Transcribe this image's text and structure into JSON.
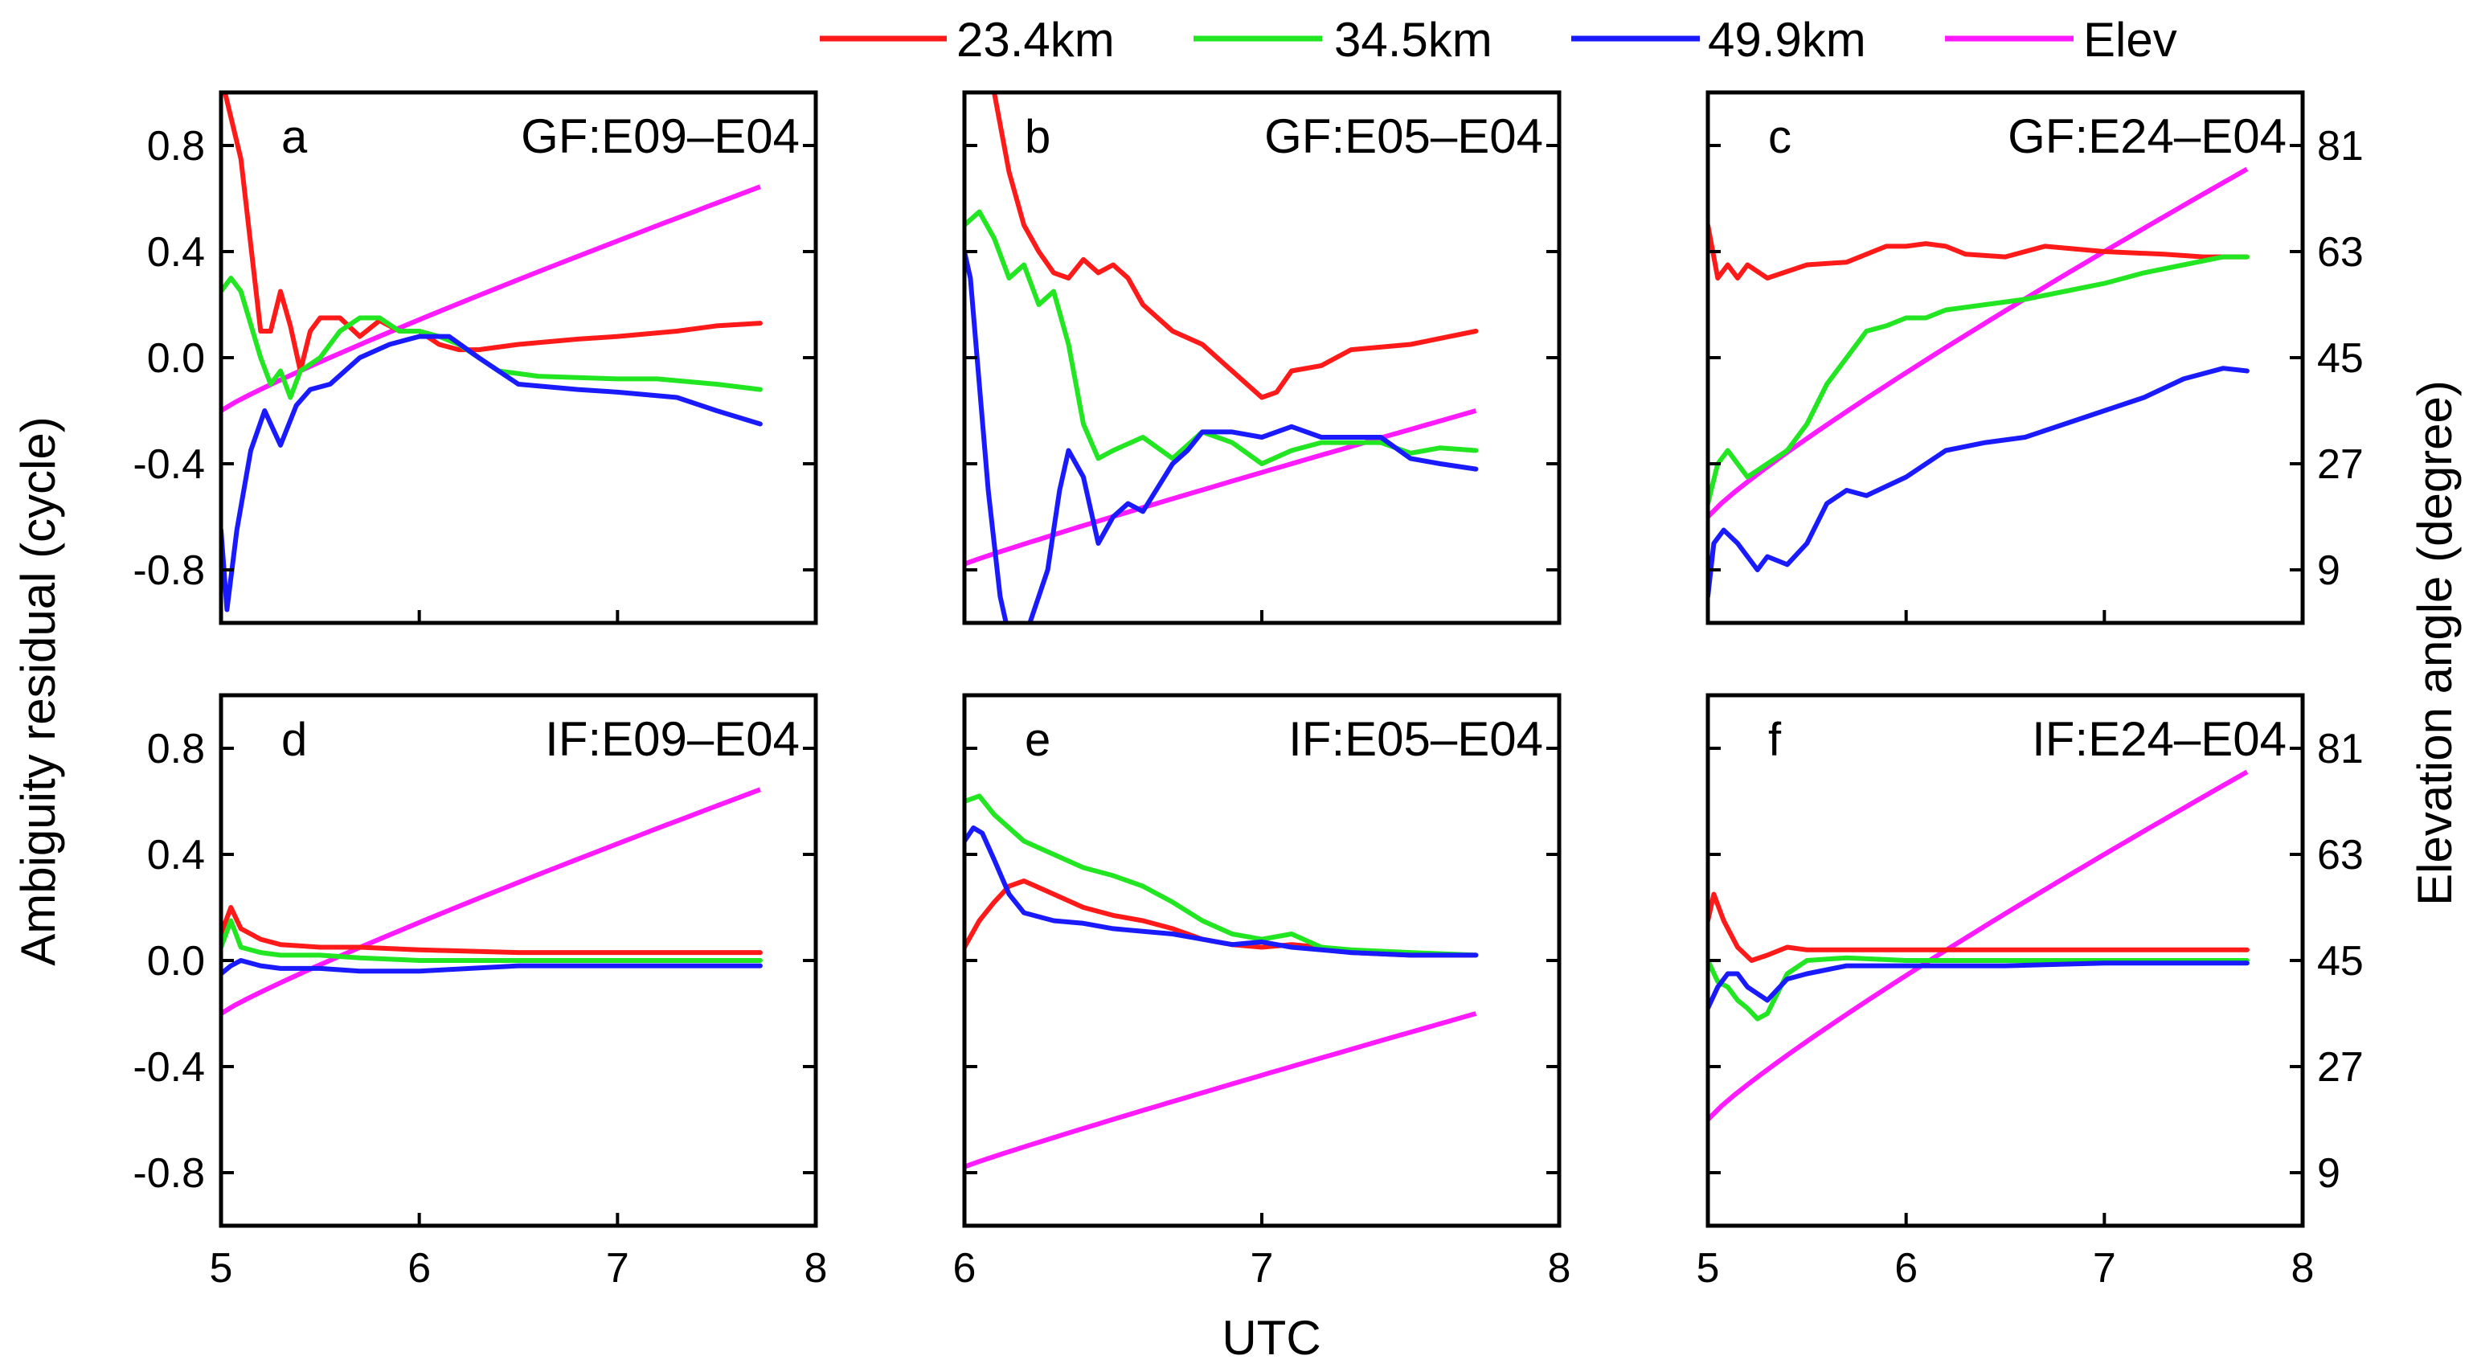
{
  "chart_data": {
    "type": "line",
    "ylabel_left": "Ambiguity residual (cycle)",
    "ylabel_right": "Elevation angle (degree)",
    "xlabel": "UTC",
    "ylim": [
      -1.0,
      1.0
    ],
    "yticks": [
      "0.8",
      "0.4",
      "0.0",
      "-0.4",
      "-0.8"
    ],
    "ylim_right": [
      0,
      90
    ],
    "yticks_right": [
      "81",
      "63",
      "45",
      "27",
      "9"
    ],
    "legend": {
      "placement": "top",
      "entries": [
        {
          "name": "23.4km",
          "color": "#ff1a1a"
        },
        {
          "name": "34.5km",
          "color": "#22e622"
        },
        {
          "name": "49.9km",
          "color": "#1a1aff"
        },
        {
          "name": "Elev",
          "color": "#ff1aff"
        }
      ]
    },
    "panels": [
      {
        "letter": "a",
        "title": "GF:E09–E04",
        "xlim": [
          5,
          8
        ],
        "xticks": [
          "5",
          "6",
          "7",
          "8"
        ],
        "series": [
          {
            "name": "23.4km",
            "x": [
              5.02,
              5.1,
              5.2,
              5.25,
              5.3,
              5.35,
              5.4,
              5.45,
              5.5,
              5.6,
              5.7,
              5.8,
              5.9,
              6.0,
              6.1,
              6.2,
              6.3,
              6.5,
              6.8,
              7.0,
              7.3,
              7.5,
              7.72
            ],
            "y": [
              1.0,
              0.75,
              0.1,
              0.1,
              0.25,
              0.12,
              -0.05,
              0.1,
              0.15,
              0.15,
              0.08,
              0.14,
              0.1,
              0.1,
              0.05,
              0.03,
              0.03,
              0.05,
              0.07,
              0.08,
              0.1,
              0.12,
              0.13
            ]
          },
          {
            "name": "34.5km",
            "x": [
              5.0,
              5.05,
              5.1,
              5.2,
              5.25,
              5.3,
              5.35,
              5.4,
              5.5,
              5.6,
              5.7,
              5.8,
              5.9,
              6.0,
              6.1,
              6.2,
              6.4,
              6.6,
              7.0,
              7.2,
              7.5,
              7.72
            ],
            "y": [
              0.25,
              0.3,
              0.25,
              0.0,
              -0.1,
              -0.05,
              -0.15,
              -0.05,
              0.0,
              0.1,
              0.15,
              0.15,
              0.1,
              0.1,
              0.08,
              0.05,
              -0.05,
              -0.07,
              -0.08,
              -0.08,
              -0.1,
              -0.12
            ]
          },
          {
            "name": "49.9km",
            "x": [
              5.0,
              5.03,
              5.08,
              5.15,
              5.22,
              5.3,
              5.38,
              5.45,
              5.55,
              5.7,
              5.85,
              6.0,
              6.15,
              6.3,
              6.5,
              6.8,
              7.0,
              7.3,
              7.5,
              7.72
            ],
            "y": [
              -0.65,
              -0.95,
              -0.65,
              -0.35,
              -0.2,
              -0.33,
              -0.18,
              -0.12,
              -0.1,
              0.0,
              0.05,
              0.08,
              0.08,
              0.0,
              -0.1,
              -0.12,
              -0.13,
              -0.15,
              -0.2,
              -0.25
            ]
          }
        ],
        "elev": {
          "x": [
            5.0,
            7.72
          ],
          "y": [
            36,
            74
          ],
          "curve": 0.9
        }
      },
      {
        "letter": "b",
        "title": "GF:E05–E04",
        "xlim": [
          6,
          8
        ],
        "xticks": [
          "6",
          "7",
          "8"
        ],
        "series": [
          {
            "name": "23.4km",
            "x": [
              6.0,
              6.05,
              6.1,
              6.15,
              6.2,
              6.25,
              6.3,
              6.35,
              6.4,
              6.45,
              6.5,
              6.55,
              6.6,
              6.7,
              6.8,
              6.9,
              7.0,
              7.05,
              7.1,
              7.2,
              7.3,
              7.5,
              7.72
            ],
            "y": [
              1.0,
              1.2,
              1.0,
              0.7,
              0.5,
              0.4,
              0.32,
              0.3,
              0.37,
              0.32,
              0.35,
              0.3,
              0.2,
              0.1,
              0.05,
              -0.05,
              -0.15,
              -0.13,
              -0.05,
              -0.03,
              0.03,
              0.05,
              0.1
            ]
          },
          {
            "name": "34.5km",
            "x": [
              6.0,
              6.05,
              6.1,
              6.15,
              6.2,
              6.25,
              6.3,
              6.35,
              6.4,
              6.45,
              6.5,
              6.6,
              6.7,
              6.8,
              6.9,
              7.0,
              7.1,
              7.2,
              7.4,
              7.5,
              7.6,
              7.72
            ],
            "y": [
              0.5,
              0.55,
              0.45,
              0.3,
              0.35,
              0.2,
              0.25,
              0.05,
              -0.25,
              -0.38,
              -0.35,
              -0.3,
              -0.38,
              -0.28,
              -0.32,
              -0.4,
              -0.35,
              -0.32,
              -0.32,
              -0.36,
              -0.34,
              -0.35
            ]
          },
          {
            "name": "49.9km",
            "x": [
              6.0,
              6.02,
              6.05,
              6.08,
              6.12,
              6.18,
              6.22,
              6.28,
              6.32,
              6.35,
              6.4,
              6.45,
              6.5,
              6.55,
              6.6,
              6.7,
              6.75,
              6.8,
              6.9,
              7.0,
              7.1,
              7.2,
              7.4,
              7.5,
              7.6,
              7.72
            ],
            "y": [
              0.4,
              0.3,
              -0.1,
              -0.5,
              -0.9,
              -1.2,
              -1.0,
              -0.8,
              -0.5,
              -0.35,
              -0.45,
              -0.7,
              -0.6,
              -0.55,
              -0.58,
              -0.4,
              -0.35,
              -0.28,
              -0.28,
              -0.3,
              -0.26,
              -0.3,
              -0.3,
              -0.38,
              -0.4,
              -0.42
            ]
          }
        ],
        "elev": {
          "x": [
            6.0,
            7.72
          ],
          "y": [
            10,
            36
          ],
          "curve": 0.95
        }
      },
      {
        "letter": "c",
        "title": "GF:E24–E04",
        "xlim": [
          5,
          8
        ],
        "xticks": [
          "5",
          "6",
          "7",
          "8"
        ],
        "series": [
          {
            "name": "23.4km",
            "x": [
              5.0,
              5.05,
              5.1,
              5.15,
              5.2,
              5.3,
              5.5,
              5.7,
              5.9,
              6.0,
              6.1,
              6.2,
              6.3,
              6.5,
              6.7,
              7.0,
              7.3,
              7.5,
              7.72
            ],
            "y": [
              0.5,
              0.3,
              0.35,
              0.3,
              0.35,
              0.3,
              0.35,
              0.36,
              0.42,
              0.42,
              0.43,
              0.42,
              0.39,
              0.38,
              0.42,
              0.4,
              0.39,
              0.38,
              0.38
            ]
          },
          {
            "name": "34.5km",
            "x": [
              5.0,
              5.05,
              5.1,
              5.2,
              5.3,
              5.4,
              5.5,
              5.6,
              5.8,
              5.9,
              6.0,
              6.1,
              6.2,
              6.4,
              6.6,
              6.8,
              7.0,
              7.2,
              7.4,
              7.6,
              7.72
            ],
            "y": [
              -0.55,
              -0.4,
              -0.35,
              -0.45,
              -0.4,
              -0.35,
              -0.25,
              -0.1,
              0.1,
              0.12,
              0.15,
              0.15,
              0.18,
              0.2,
              0.22,
              0.25,
              0.28,
              0.32,
              0.35,
              0.38,
              0.38
            ]
          },
          {
            "name": "49.9km",
            "x": [
              5.0,
              5.03,
              5.08,
              5.15,
              5.25,
              5.3,
              5.4,
              5.5,
              5.6,
              5.7,
              5.8,
              6.0,
              6.2,
              6.4,
              6.6,
              6.8,
              7.0,
              7.2,
              7.4,
              7.6,
              7.72
            ],
            "y": [
              -0.9,
              -0.7,
              -0.65,
              -0.7,
              -0.8,
              -0.75,
              -0.78,
              -0.7,
              -0.55,
              -0.5,
              -0.52,
              -0.45,
              -0.35,
              -0.32,
              -0.3,
              -0.25,
              -0.2,
              -0.15,
              -0.08,
              -0.04,
              -0.05
            ]
          }
        ],
        "elev": {
          "x": [
            5.0,
            7.72
          ],
          "y": [
            18,
            77
          ],
          "curve": 0.88
        }
      },
      {
        "letter": "d",
        "title": "IF:E09–E04",
        "xlim": [
          5,
          8
        ],
        "xticks": [
          "5",
          "6",
          "7",
          "8"
        ],
        "series": [
          {
            "name": "23.4km",
            "x": [
              5.0,
              5.05,
              5.1,
              5.2,
              5.3,
              5.5,
              5.7,
              6.0,
              6.5,
              7.0,
              7.72
            ],
            "y": [
              0.1,
              0.2,
              0.12,
              0.08,
              0.06,
              0.05,
              0.05,
              0.04,
              0.03,
              0.03,
              0.03
            ]
          },
          {
            "name": "34.5km",
            "x": [
              5.0,
              5.05,
              5.1,
              5.2,
              5.3,
              5.5,
              5.7,
              6.0,
              6.5,
              7.0,
              7.72
            ],
            "y": [
              0.05,
              0.15,
              0.05,
              0.03,
              0.02,
              0.02,
              0.01,
              0.0,
              0.0,
              0.0,
              0.0
            ]
          },
          {
            "name": "49.9km",
            "x": [
              5.0,
              5.05,
              5.1,
              5.2,
              5.3,
              5.5,
              5.7,
              6.0,
              6.5,
              7.0,
              7.72
            ],
            "y": [
              -0.05,
              -0.02,
              0.0,
              -0.02,
              -0.03,
              -0.03,
              -0.04,
              -0.04,
              -0.02,
              -0.02,
              -0.02
            ]
          }
        ],
        "elev": {
          "x": [
            5.0,
            7.72
          ],
          "y": [
            36,
            74
          ],
          "curve": 0.9
        }
      },
      {
        "letter": "e",
        "title": "IF:E05–E04",
        "xlim": [
          6,
          8
        ],
        "xticks": [
          "6",
          "7",
          "8"
        ],
        "series": [
          {
            "name": "23.4km",
            "x": [
              6.0,
              6.05,
              6.1,
              6.15,
              6.2,
              6.3,
              6.4,
              6.5,
              6.6,
              6.7,
              6.8,
              6.9,
              7.0,
              7.1,
              7.2,
              7.3,
              7.5,
              7.72
            ],
            "y": [
              0.05,
              0.15,
              0.22,
              0.28,
              0.3,
              0.25,
              0.2,
              0.17,
              0.15,
              0.12,
              0.08,
              0.06,
              0.05,
              0.06,
              0.05,
              0.03,
              0.02,
              0.02
            ]
          },
          {
            "name": "34.5km",
            "x": [
              6.0,
              6.05,
              6.1,
              6.15,
              6.2,
              6.3,
              6.4,
              6.5,
              6.6,
              6.7,
              6.8,
              6.9,
              7.0,
              7.1,
              7.2,
              7.3,
              7.5,
              7.72
            ],
            "y": [
              0.6,
              0.62,
              0.55,
              0.5,
              0.45,
              0.4,
              0.35,
              0.32,
              0.28,
              0.22,
              0.15,
              0.1,
              0.08,
              0.1,
              0.05,
              0.04,
              0.03,
              0.02
            ]
          },
          {
            "name": "49.9km",
            "x": [
              6.0,
              6.03,
              6.06,
              6.1,
              6.15,
              6.2,
              6.3,
              6.4,
              6.5,
              6.6,
              6.7,
              6.8,
              6.9,
              7.0,
              7.1,
              7.2,
              7.3,
              7.5,
              7.72
            ],
            "y": [
              0.45,
              0.5,
              0.48,
              0.38,
              0.25,
              0.18,
              0.15,
              0.14,
              0.12,
              0.11,
              0.1,
              0.08,
              0.06,
              0.07,
              0.05,
              0.04,
              0.03,
              0.02,
              0.02
            ]
          }
        ],
        "elev": {
          "x": [
            6.0,
            7.72
          ],
          "y": [
            10,
            36
          ],
          "curve": 0.95
        }
      },
      {
        "letter": "f",
        "title": "IF:E24–E04",
        "xlim": [
          5,
          8
        ],
        "xticks": [
          "5",
          "6",
          "7",
          "8"
        ],
        "series": [
          {
            "name": "23.4km",
            "x": [
              5.0,
              5.03,
              5.08,
              5.15,
              5.22,
              5.3,
              5.4,
              5.5,
              5.7,
              6.0,
              6.5,
              7.0,
              7.72
            ],
            "y": [
              0.15,
              0.25,
              0.15,
              0.05,
              0.0,
              0.02,
              0.05,
              0.04,
              0.04,
              0.04,
              0.04,
              0.04,
              0.04
            ]
          },
          {
            "name": "34.5km",
            "x": [
              5.0,
              5.05,
              5.1,
              5.15,
              5.2,
              5.25,
              5.3,
              5.4,
              5.5,
              5.7,
              6.0,
              6.5,
              7.0,
              7.72
            ],
            "y": [
              0.0,
              -0.08,
              -0.1,
              -0.15,
              -0.18,
              -0.22,
              -0.2,
              -0.05,
              0.0,
              0.01,
              0.0,
              0.0,
              0.0,
              0.0
            ]
          },
          {
            "name": "49.9km",
            "x": [
              5.0,
              5.05,
              5.1,
              5.15,
              5.2,
              5.3,
              5.4,
              5.5,
              5.7,
              6.0,
              6.5,
              7.0,
              7.72
            ],
            "y": [
              -0.18,
              -0.1,
              -0.05,
              -0.05,
              -0.1,
              -0.15,
              -0.07,
              -0.05,
              -0.02,
              -0.02,
              -0.02,
              -0.01,
              -0.01
            ]
          }
        ],
        "elev": {
          "x": [
            5.0,
            7.72
          ],
          "y": [
            18,
            77
          ],
          "curve": 0.88
        }
      }
    ]
  }
}
